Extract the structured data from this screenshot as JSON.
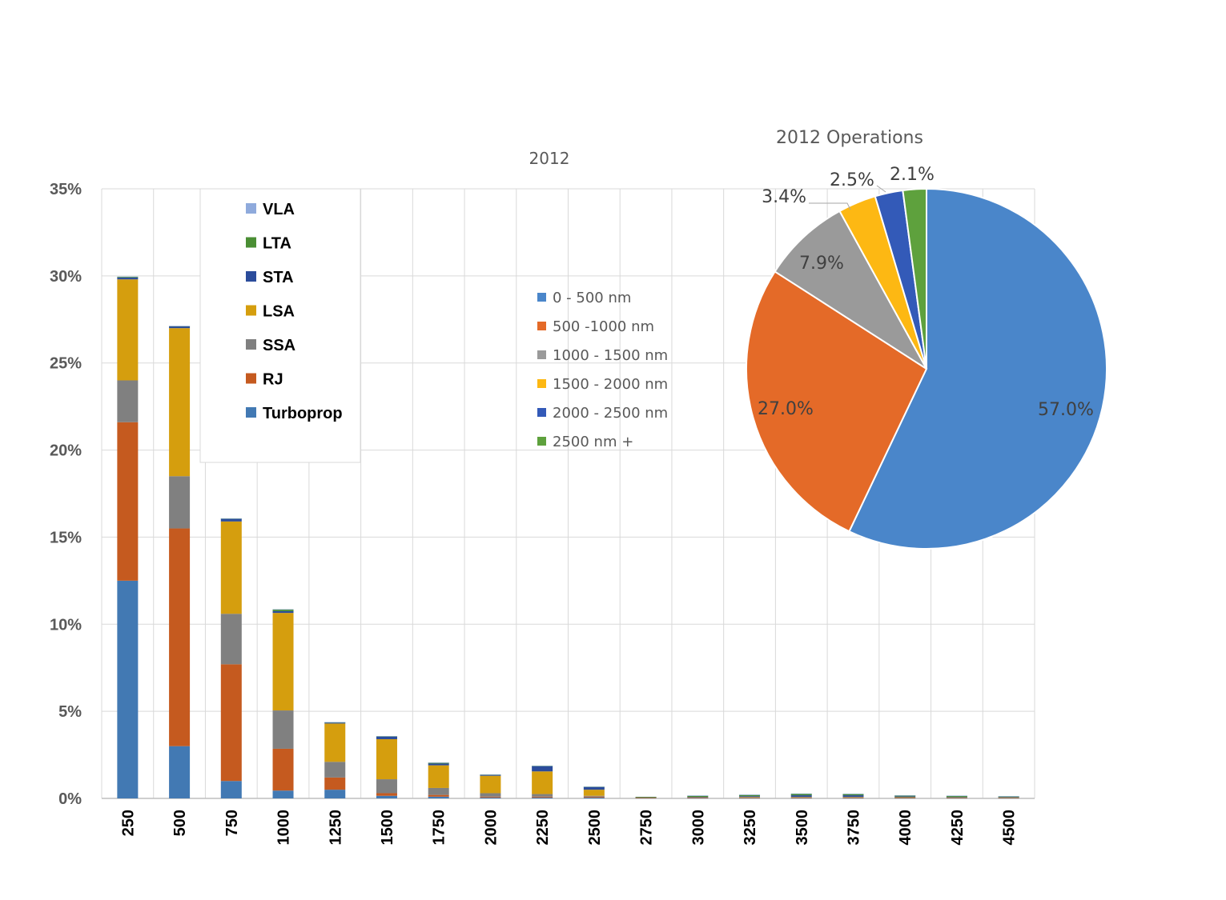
{
  "chart_data": [
    {
      "type": "bar",
      "stacked": true,
      "title": "2012",
      "categories": [
        "250",
        "500",
        "750",
        "1000",
        "1250",
        "1500",
        "1750",
        "2000",
        "2250",
        "2500",
        "2750",
        "3000",
        "3250",
        "3500",
        "3750",
        "4000",
        "4250",
        "4500"
      ],
      "ytick_labels": [
        "0%",
        "5%",
        "10%",
        "15%",
        "20%",
        "25%",
        "30%",
        "35%"
      ],
      "ylim": [
        0,
        35
      ],
      "grid": true,
      "legend_placement": "top-left",
      "series": [
        {
          "name": "Turboprop",
          "color": "#4279B3",
          "values": [
            12.5,
            3.0,
            1.0,
            0.45,
            0.5,
            0.15,
            0.1,
            0.05,
            0.05,
            0.05,
            0.02,
            0.02,
            0.02,
            0.02,
            0.02,
            0.02,
            0.02,
            0.02
          ]
        },
        {
          "name": "RJ",
          "color": "#C55A1F",
          "values": [
            9.1,
            12.5,
            6.7,
            2.4,
            0.7,
            0.15,
            0.1,
            0.05,
            0.05,
            0.05,
            0.01,
            0.01,
            0.01,
            0.01,
            0.01,
            0.01,
            0.01,
            0.01
          ]
        },
        {
          "name": "SSA",
          "color": "#808080",
          "values": [
            2.4,
            3.0,
            2.9,
            2.2,
            0.9,
            0.8,
            0.4,
            0.2,
            0.15,
            0.05,
            0.03,
            0.03,
            0.03,
            0.03,
            0.03,
            0.03,
            0.03,
            0.03
          ]
        },
        {
          "name": "LSA",
          "color": "#D59E0E",
          "values": [
            5.8,
            8.5,
            5.3,
            5.6,
            2.2,
            2.3,
            1.3,
            1.0,
            1.3,
            0.35,
            0.01,
            0.02,
            0.02,
            0.02,
            0.02,
            0.01,
            0.01,
            0.01
          ]
        },
        {
          "name": "STA",
          "color": "#2B4C9B",
          "values": [
            0.1,
            0.1,
            0.15,
            0.1,
            0.05,
            0.15,
            0.1,
            0.05,
            0.3,
            0.15,
            0.01,
            0.01,
            0.05,
            0.1,
            0.1,
            0.05,
            0.01,
            0.01
          ]
        },
        {
          "name": "LTA",
          "color": "#4A8E34",
          "values": [
            0.05,
            0.02,
            0.02,
            0.1,
            0.02,
            0.02,
            0.05,
            0.02,
            0.02,
            0.02,
            0.01,
            0.06,
            0.07,
            0.08,
            0.07,
            0.05,
            0.07,
            0.04
          ]
        },
        {
          "name": "VLA",
          "color": "#8FAADC",
          "values": [
            0.01,
            0.01,
            0.01,
            0.01,
            0.01,
            0.01,
            0.01,
            0.01,
            0.01,
            0.01,
            0.0,
            0.02,
            0.02,
            0.02,
            0.02,
            0.01,
            0.01,
            0.01
          ]
        }
      ]
    },
    {
      "type": "pie",
      "title": "2012 Operations",
      "legend_placement": "left",
      "slices": [
        {
          "name": "0 - 500 nm",
          "value": 57.0,
          "label": "57.0%",
          "color": "#4A86CA"
        },
        {
          "name": "500 -1000 nm",
          "value": 27.0,
          "label": "27.0%",
          "color": "#E46A28"
        },
        {
          "name": "1000 - 1500 nm",
          "value": 7.9,
          "label": "7.9%",
          "color": "#9A9A9A"
        },
        {
          "name": "1500 - 2000 nm",
          "value": 3.4,
          "label": "3.4%",
          "color": "#FDB813"
        },
        {
          "name": "2000 - 2500 nm",
          "value": 2.5,
          "label": "2.5%",
          "color": "#335AB8"
        },
        {
          "name": "2500 nm +",
          "value": 2.1,
          "label": "2.1%",
          "color": "#5EA13D"
        }
      ]
    }
  ]
}
